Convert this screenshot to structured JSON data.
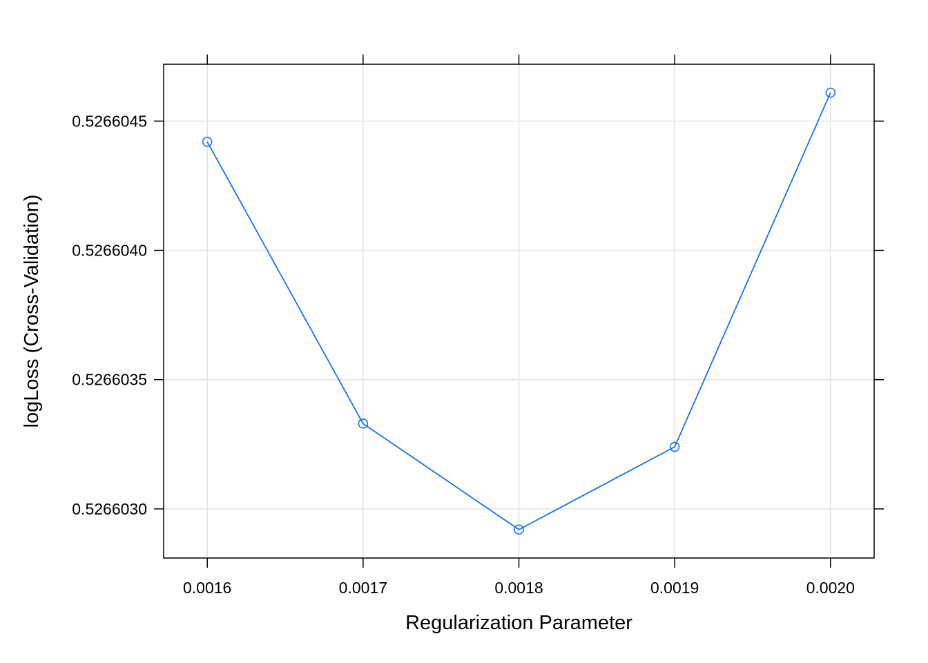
{
  "chart_data": {
    "type": "line",
    "title": "",
    "xlabel": "Regularization Parameter",
    "ylabel": "logLoss (Cross-Validation)",
    "x": [
      0.0016,
      0.0017,
      0.0018,
      0.0019,
      0.002
    ],
    "x_tick_labels": [
      "0.0016",
      "0.0017",
      "0.0018",
      "0.0019",
      "0.0020"
    ],
    "y_ticks": [
      0.526603,
      0.5266035,
      0.526604,
      0.5266045
    ],
    "y_tick_labels": [
      "0.5266030",
      "0.5266035",
      "0.5266040",
      "0.5266045"
    ],
    "series": [
      {
        "values": [
          0.52660442,
          0.52660333,
          0.52660292,
          0.52660324,
          0.52660461
        ],
        "color": "#1a6ef7",
        "marker": "open-circle"
      }
    ],
    "xlim": [
      0.001572,
      0.002028
    ],
    "ylim": [
      0.52660281,
      0.52660472
    ],
    "grid": true
  }
}
